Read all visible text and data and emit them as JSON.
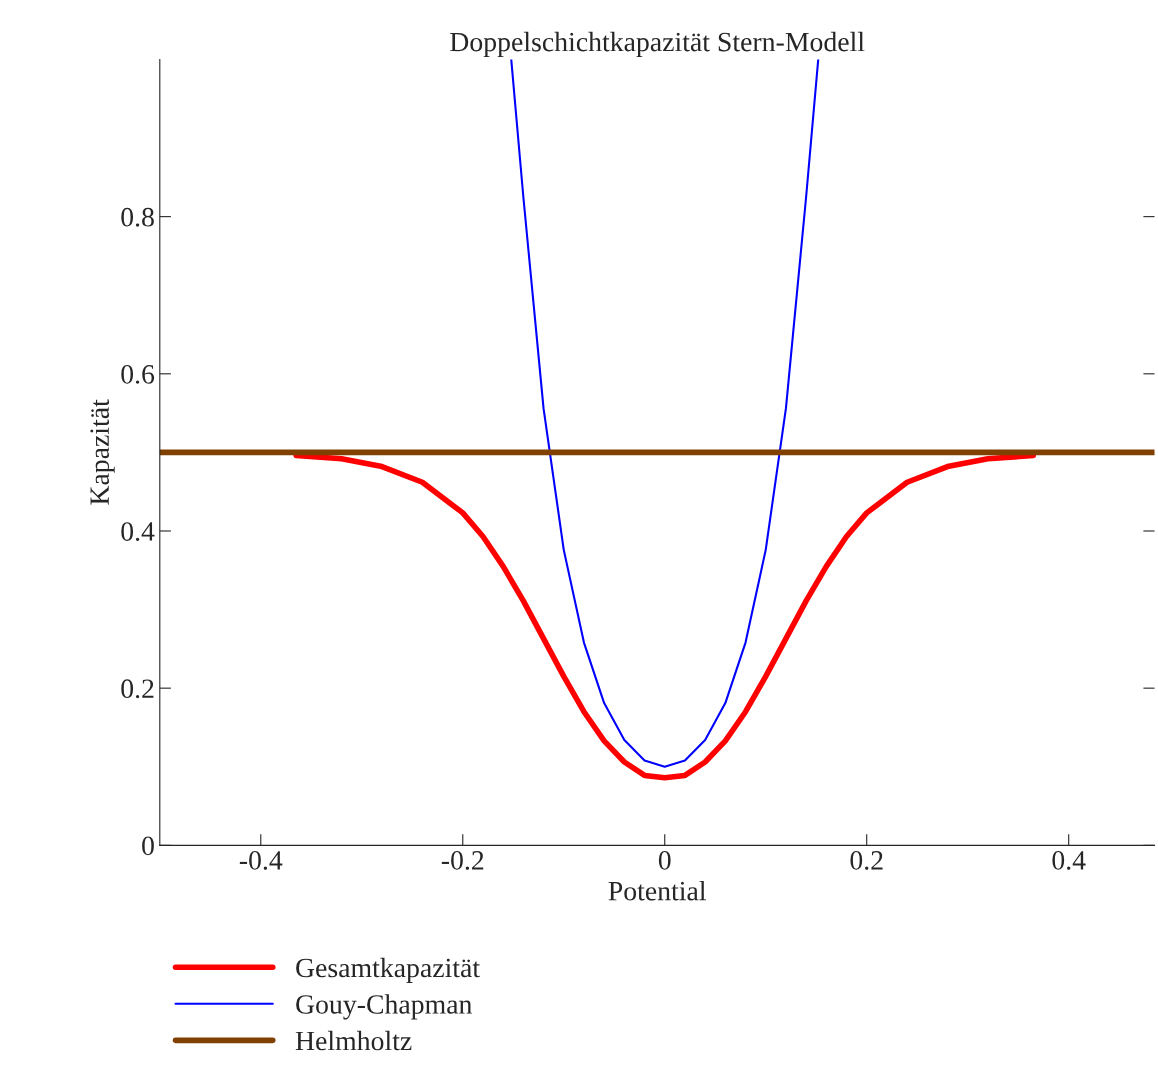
{
  "chart_data": {
    "type": "line",
    "title": "Doppelschichtkapazität Stern-Modell",
    "xlabel": "Potential",
    "ylabel": "Kapazität",
    "xlim": [
      -0.5,
      0.485
    ],
    "xticks": [
      {
        "value": -0.4,
        "label": "-0.4"
      },
      {
        "value": -0.2,
        "label": "-0.2"
      },
      0,
      0.2,
      0.4
    ],
    "ylim": [
      0,
      1
    ],
    "yticks": [
      0,
      0.2,
      0.4,
      0.6,
      0.8
    ],
    "grid": false,
    "legend": "bottom left",
    "marker": "none",
    "line_style": "solid",
    "series": [
      {
        "name": "Gesamtkapazität",
        "color": "#ff0000",
        "x": [
          -0.365,
          -0.32,
          -0.28,
          -0.24,
          -0.2,
          -0.18,
          -0.16,
          -0.14,
          -0.12,
          -0.1,
          -0.08,
          -0.06,
          -0.04,
          -0.02,
          0,
          0.02,
          0.04,
          0.06,
          0.08,
          0.1,
          0.12,
          0.14,
          0.16,
          0.18,
          0.2,
          0.24,
          0.28,
          0.32,
          0.365
        ],
        "values": [
          0.496,
          0.492,
          0.482,
          0.462,
          0.423,
          0.393,
          0.355,
          0.311,
          0.263,
          0.215,
          0.17,
          0.133,
          0.106,
          0.089,
          0.086,
          0.089,
          0.106,
          0.133,
          0.17,
          0.215,
          0.263,
          0.311,
          0.355,
          0.393,
          0.423,
          0.462,
          0.482,
          0.492,
          0.496
        ]
      },
      {
        "name": "Gouy-Chapman",
        "color": "#0000ff",
        "x": [
          -0.152,
          -0.14,
          -0.12,
          -0.1,
          -0.08,
          -0.06,
          -0.04,
          -0.02,
          0,
          0.02,
          0.04,
          0.06,
          0.08,
          0.1,
          0.12,
          0.14,
          0.152
        ],
        "values": [
          1.0,
          0.825,
          0.556,
          0.376,
          0.258,
          0.181,
          0.134,
          0.108,
          0.1,
          0.108,
          0.134,
          0.181,
          0.258,
          0.376,
          0.556,
          0.825,
          1.0
        ]
      },
      {
        "name": "Helmholtz",
        "color": "#804000",
        "x": [
          -0.5,
          0.485
        ],
        "values": [
          0.5,
          0.5
        ]
      }
    ]
  }
}
